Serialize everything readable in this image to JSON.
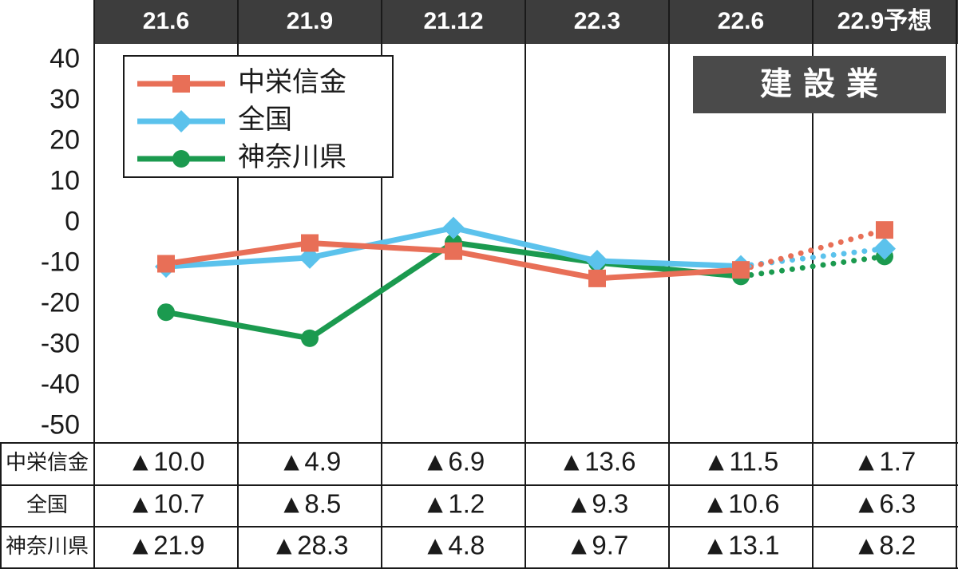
{
  "chart_data": {
    "type": "line",
    "panel_label": "建設業",
    "categories": [
      "21.6",
      "21.9",
      "21.12",
      "22.3",
      "22.6",
      "22.9予想"
    ],
    "series": [
      {
        "name": "中栄信金",
        "color": "#e86f57",
        "marker": "square",
        "values": [
          -10.0,
          -4.9,
          -6.9,
          -13.6,
          -11.5,
          -1.7
        ],
        "value_labels": [
          "▲10.0",
          "▲4.9",
          "▲6.9",
          "▲13.6",
          "▲11.5",
          "▲1.7"
        ]
      },
      {
        "name": "全国",
        "color": "#5bc2ec",
        "marker": "diamond",
        "values": [
          -10.7,
          -8.5,
          -1.2,
          -9.3,
          -10.6,
          -6.3
        ],
        "value_labels": [
          "▲10.7",
          "▲8.5",
          "▲1.2",
          "▲9.3",
          "▲10.6",
          "▲6.3"
        ]
      },
      {
        "name": "神奈川県",
        "color": "#1b9a4f",
        "marker": "circle",
        "values": [
          -21.9,
          -28.3,
          -4.8,
          -9.7,
          -13.1,
          -8.2
        ],
        "value_labels": [
          "▲21.9",
          "▲28.3",
          "▲4.8",
          "▲9.7",
          "▲13.1",
          "▲8.2"
        ]
      }
    ],
    "dotted_from": 4,
    "ylim": [
      -54,
      44
    ],
    "yticks": [
      40,
      30,
      20,
      10,
      0,
      -10,
      -20,
      -30,
      -40,
      -50
    ],
    "legend": "upper left"
  }
}
